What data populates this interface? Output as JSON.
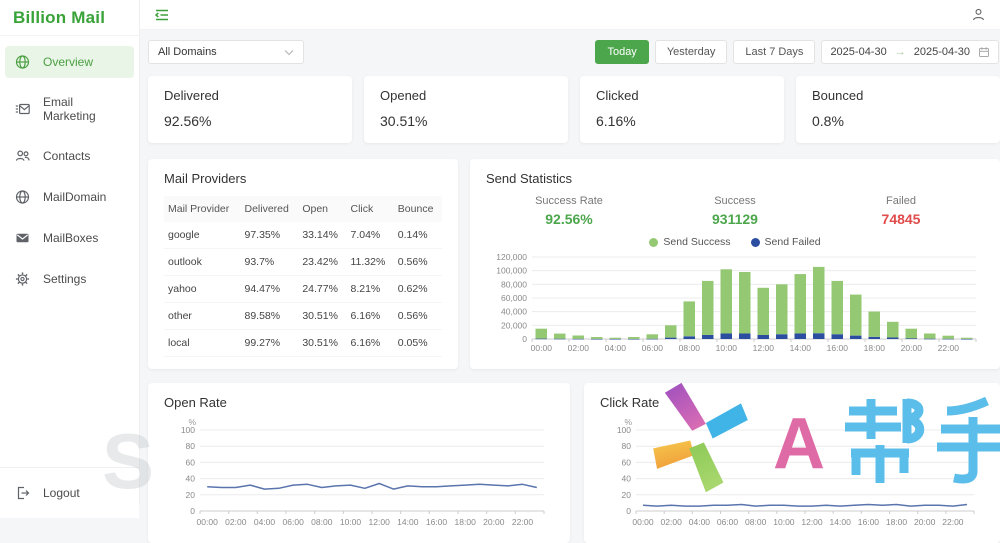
{
  "app": {
    "title": "Billion Mail"
  },
  "sidebar": {
    "items": [
      {
        "label": "Overview",
        "active": true
      },
      {
        "label": "Email Marketing",
        "active": false
      },
      {
        "label": "Contacts",
        "active": false
      },
      {
        "label": "MailDomain",
        "active": false
      },
      {
        "label": "MailBoxes",
        "active": false
      },
      {
        "label": "Settings",
        "active": false
      }
    ],
    "logout_label": "Logout"
  },
  "toolbar": {
    "domain_value": "All Domains",
    "ranges": [
      "Today",
      "Yesterday",
      "Last 7 Days"
    ],
    "active_range": "Today",
    "date_from": "2025-04-30",
    "date_to": "2025-04-30"
  },
  "stat_cards": [
    {
      "label": "Delivered",
      "value": "92.56%"
    },
    {
      "label": "Opened",
      "value": "30.51%"
    },
    {
      "label": "Clicked",
      "value": "6.16%"
    },
    {
      "label": "Bounced",
      "value": "0.8%"
    }
  ],
  "mail_providers": {
    "title": "Mail Providers",
    "columns": [
      "Mail Provider",
      "Delivered",
      "Open",
      "Click",
      "Bounce"
    ],
    "rows": [
      [
        "google",
        "97.35%",
        "33.14%",
        "7.04%",
        "0.14%"
      ],
      [
        "outlook",
        "93.7%",
        "23.42%",
        "11.32%",
        "0.56%"
      ],
      [
        "yahoo",
        "94.47%",
        "24.77%",
        "8.21%",
        "0.62%"
      ],
      [
        "other",
        "89.58%",
        "30.51%",
        "6.16%",
        "0.56%"
      ],
      [
        "local",
        "99.27%",
        "30.51%",
        "6.16%",
        "0.05%"
      ]
    ]
  },
  "send_statistics": {
    "title": "Send Statistics",
    "metrics": [
      {
        "label": "Success Rate",
        "value": "92.56%",
        "color": "#4ca64c"
      },
      {
        "label": "Success",
        "value": "931129",
        "color": "#4ca64c"
      },
      {
        "label": "Failed",
        "value": "74845",
        "color": "#e04b4b"
      }
    ],
    "legend": [
      {
        "label": "Send Success",
        "color": "#95c873"
      },
      {
        "label": "Send Failed",
        "color": "#2c4ea0"
      }
    ]
  },
  "open_rate": {
    "title": "Open Rate"
  },
  "click_rate": {
    "title": "Click Rate"
  },
  "watermark": {
    "letter_a": "A",
    "cjk_text": "帮手",
    "faint_letter": "S"
  },
  "chart_data": [
    {
      "type": "bar",
      "title": "Send Statistics",
      "stacked": true,
      "x": [
        "00:00",
        "01:00",
        "02:00",
        "03:00",
        "04:00",
        "05:00",
        "06:00",
        "07:00",
        "08:00",
        "09:00",
        "10:00",
        "11:00",
        "12:00",
        "13:00",
        "14:00",
        "15:00",
        "16:00",
        "17:00",
        "18:00",
        "19:00",
        "20:00",
        "21:00",
        "22:00",
        "23:00"
      ],
      "series": [
        {
          "name": "Send Success",
          "values": [
            14500,
            7500,
            4800,
            2800,
            1800,
            2800,
            6500,
            18000,
            51000,
            79000,
            94000,
            90000,
            69000,
            73000,
            87000,
            97000,
            78000,
            60000,
            37000,
            23000,
            14000,
            7500,
            4500,
            1800
          ]
        },
        {
          "name": "Send Failed",
          "values": [
            600,
            400,
            250,
            150,
            100,
            150,
            350,
            2000,
            4000,
            6000,
            8000,
            8000,
            6000,
            7000,
            8000,
            8500,
            7000,
            5000,
            3200,
            2200,
            1100,
            500,
            300,
            150
          ]
        }
      ],
      "colors": [
        "#95c873",
        "#2c4ea0"
      ],
      "ylim": [
        0,
        120000
      ],
      "ytick": 20000,
      "xlabel_every": 2,
      "grid": true,
      "legend_position": "top"
    },
    {
      "type": "line",
      "title": "Open Rate",
      "x": [
        "00:00",
        "01:00",
        "02:00",
        "03:00",
        "04:00",
        "05:00",
        "06:00",
        "07:00",
        "08:00",
        "09:00",
        "10:00",
        "11:00",
        "12:00",
        "13:00",
        "14:00",
        "15:00",
        "16:00",
        "17:00",
        "18:00",
        "19:00",
        "20:00",
        "21:00",
        "22:00",
        "23:00"
      ],
      "values": [
        30,
        29,
        29,
        32,
        27,
        28,
        32,
        33,
        29,
        31,
        32,
        28,
        34,
        27,
        31,
        30,
        30,
        31,
        32,
        33,
        32,
        31,
        33,
        29
      ],
      "color": "#5a74ad",
      "ylim": [
        0,
        100
      ],
      "ytick": 20,
      "ylabel": "%",
      "xlabel_every": 2,
      "grid": true
    },
    {
      "type": "line",
      "title": "Click Rate",
      "x": [
        "00:00",
        "01:00",
        "02:00",
        "03:00",
        "04:00",
        "05:00",
        "06:00",
        "07:00",
        "08:00",
        "09:00",
        "10:00",
        "11:00",
        "12:00",
        "13:00",
        "14:00",
        "15:00",
        "16:00",
        "17:00",
        "18:00",
        "19:00",
        "20:00",
        "21:00",
        "22:00",
        "23:00"
      ],
      "values": [
        7,
        6,
        7,
        6,
        6,
        7,
        7,
        8,
        6,
        7,
        7,
        6,
        6,
        7,
        6,
        7,
        8,
        7,
        8,
        6,
        7,
        7,
        6,
        8
      ],
      "color": "#5a74ad",
      "ylim": [
        0,
        100
      ],
      "ytick": 20,
      "ylabel": "%",
      "xlabel_every": 2,
      "grid": true
    }
  ]
}
